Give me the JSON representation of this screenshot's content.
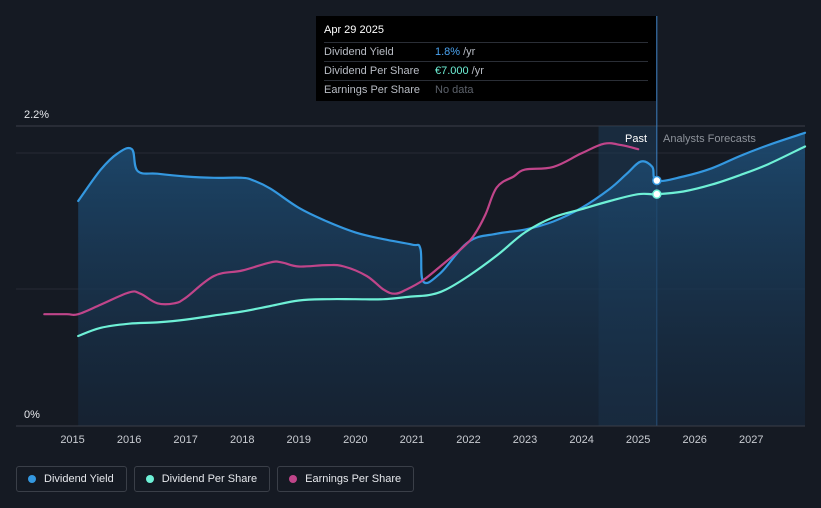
{
  "chart_data": {
    "type": "line",
    "y_tick_labels": [
      "2.2%",
      "0%"
    ],
    "ylim_percent": [
      0,
      2.2
    ],
    "x_tick_labels": [
      "2015",
      "2016",
      "2017",
      "2018",
      "2019",
      "2020",
      "2021",
      "2022",
      "2023",
      "2024",
      "2025",
      "2026",
      "2027"
    ],
    "xlim": [
      2014.0,
      2027.95
    ],
    "past_label": "Past",
    "forecast_label": "Analysts Forecasts",
    "forecast_band": [
      2024.3,
      2025.33
    ],
    "series": [
      {
        "name": "Dividend Yield",
        "color": "#3498e0",
        "filled": true,
        "points": [
          [
            2015.1,
            1.65
          ],
          [
            2015.5,
            1.88
          ],
          [
            2015.8,
            2.0
          ],
          [
            2016.05,
            2.03
          ],
          [
            2016.15,
            1.87
          ],
          [
            2016.5,
            1.85
          ],
          [
            2017.0,
            1.83
          ],
          [
            2017.5,
            1.82
          ],
          [
            2018.0,
            1.82
          ],
          [
            2018.2,
            1.8
          ],
          [
            2018.5,
            1.74
          ],
          [
            2019.0,
            1.6
          ],
          [
            2019.5,
            1.5
          ],
          [
            2020.0,
            1.42
          ],
          [
            2020.5,
            1.37
          ],
          [
            2021.0,
            1.33
          ],
          [
            2021.15,
            1.3
          ],
          [
            2021.2,
            1.06
          ],
          [
            2021.5,
            1.12
          ],
          [
            2022.0,
            1.35
          ],
          [
            2022.5,
            1.41
          ],
          [
            2023.0,
            1.44
          ],
          [
            2023.5,
            1.5
          ],
          [
            2024.0,
            1.6
          ],
          [
            2024.5,
            1.74
          ],
          [
            2024.8,
            1.85
          ],
          [
            2025.05,
            1.94
          ],
          [
            2025.25,
            1.9
          ],
          [
            2025.33,
            1.8
          ],
          [
            2025.8,
            1.83
          ],
          [
            2026.3,
            1.89
          ],
          [
            2026.8,
            1.98
          ],
          [
            2027.3,
            2.06
          ],
          [
            2027.95,
            2.15
          ]
        ],
        "marker_x": 2025.33
      },
      {
        "name": "Dividend Per Share",
        "color": "#6ef0d6",
        "filled": false,
        "points": [
          [
            2015.1,
            0.66
          ],
          [
            2015.5,
            0.72
          ],
          [
            2016.0,
            0.75
          ],
          [
            2016.5,
            0.76
          ],
          [
            2017.0,
            0.78
          ],
          [
            2017.5,
            0.81
          ],
          [
            2018.0,
            0.84
          ],
          [
            2018.5,
            0.88
          ],
          [
            2019.0,
            0.92
          ],
          [
            2019.5,
            0.93
          ],
          [
            2020.0,
            0.93
          ],
          [
            2020.5,
            0.93
          ],
          [
            2021.0,
            0.95
          ],
          [
            2021.3,
            0.96
          ],
          [
            2021.6,
            1.0
          ],
          [
            2022.0,
            1.1
          ],
          [
            2022.5,
            1.25
          ],
          [
            2023.0,
            1.42
          ],
          [
            2023.5,
            1.53
          ],
          [
            2024.0,
            1.59
          ],
          [
            2024.5,
            1.65
          ],
          [
            2025.0,
            1.7
          ],
          [
            2025.33,
            1.7
          ],
          [
            2025.8,
            1.72
          ],
          [
            2026.3,
            1.77
          ],
          [
            2026.8,
            1.84
          ],
          [
            2027.3,
            1.92
          ],
          [
            2027.95,
            2.05
          ]
        ],
        "marker_x": 2025.33
      },
      {
        "name": "Earnings Per Share",
        "color": "#c0458a",
        "filled": false,
        "points": [
          [
            2014.5,
            0.82
          ],
          [
            2014.9,
            0.82
          ],
          [
            2015.1,
            0.82
          ],
          [
            2015.5,
            0.89
          ],
          [
            2016.0,
            0.98
          ],
          [
            2016.2,
            0.97
          ],
          [
            2016.5,
            0.9
          ],
          [
            2016.8,
            0.9
          ],
          [
            2017.0,
            0.94
          ],
          [
            2017.5,
            1.1
          ],
          [
            2018.0,
            1.14
          ],
          [
            2018.5,
            1.2
          ],
          [
            2018.7,
            1.2
          ],
          [
            2019.0,
            1.17
          ],
          [
            2019.5,
            1.18
          ],
          [
            2019.8,
            1.17
          ],
          [
            2020.2,
            1.1
          ],
          [
            2020.5,
            1.0
          ],
          [
            2020.7,
            0.97
          ],
          [
            2020.9,
            1.0
          ],
          [
            2021.2,
            1.07
          ],
          [
            2021.5,
            1.17
          ],
          [
            2021.9,
            1.31
          ],
          [
            2022.1,
            1.4
          ],
          [
            2022.3,
            1.55
          ],
          [
            2022.5,
            1.75
          ],
          [
            2022.8,
            1.83
          ],
          [
            2023.0,
            1.88
          ],
          [
            2023.5,
            1.9
          ],
          [
            2024.0,
            2.0
          ],
          [
            2024.4,
            2.07
          ],
          [
            2024.7,
            2.06
          ],
          [
            2025.0,
            2.03
          ]
        ]
      }
    ]
  },
  "tooltip": {
    "date": "Apr 29 2025",
    "rows": [
      {
        "label": "Dividend Yield",
        "value": "1.8%",
        "unit": "/yr"
      },
      {
        "label": "Dividend Per Share",
        "value": "€7.000",
        "unit": "/yr"
      },
      {
        "label": "Earnings Per Share",
        "value": "No data",
        "unit": ""
      }
    ]
  },
  "legend": {
    "items": [
      {
        "label": "Dividend Yield",
        "color": "#3498e0"
      },
      {
        "label": "Dividend Per Share",
        "color": "#6ef0d6"
      },
      {
        "label": "Earnings Per Share",
        "color": "#c0458a"
      }
    ]
  }
}
